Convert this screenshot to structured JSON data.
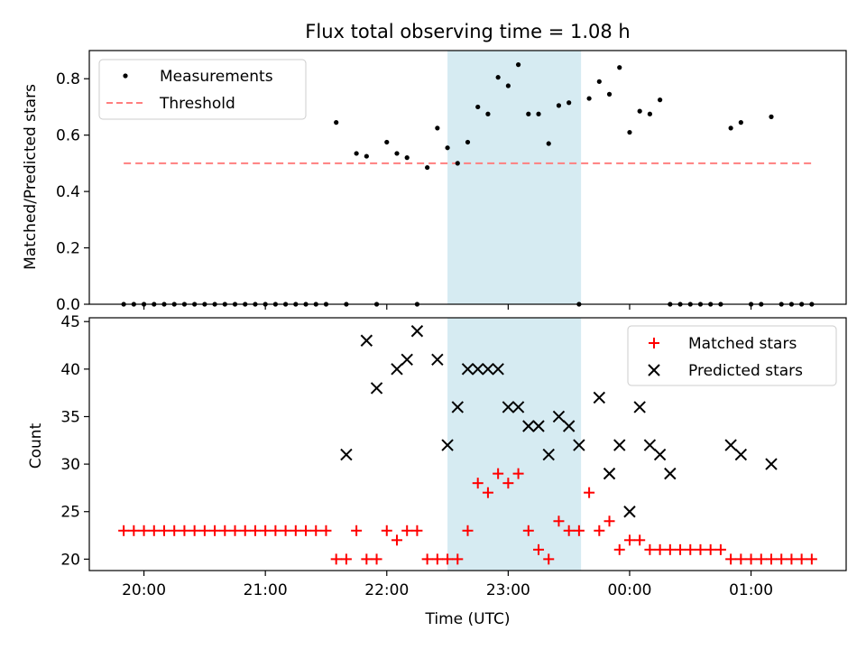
{
  "chart_data": [
    {
      "type": "scatter",
      "title": "Flux total observing time = 1.08 h",
      "ylabel": "Matched/Predicted stars",
      "xlabel": "",
      "ylim": [
        0,
        0.9
      ],
      "yticks": [
        "0.0",
        "0.2",
        "0.4",
        "0.6",
        "0.8"
      ],
      "xlim": [
        "19:33",
        "01:47"
      ],
      "legend": {
        "placement": "top-left",
        "entries": [
          "Measurements",
          "Threshold"
        ]
      },
      "shaded_interval": {
        "x0": "22:30",
        "x1": "23:36",
        "color": "#add8e6"
      },
      "series": [
        {
          "name": "Measurements",
          "marker": "dot",
          "color": "#000000",
          "x": [
            "19:50",
            "19:55",
            "20:00",
            "20:05",
            "20:10",
            "20:15",
            "20:20",
            "20:25",
            "20:30",
            "20:35",
            "20:40",
            "20:45",
            "20:50",
            "20:55",
            "21:00",
            "21:05",
            "21:10",
            "21:15",
            "21:20",
            "21:25",
            "21:30",
            "21:35",
            "21:40",
            "21:45",
            "21:50",
            "21:55",
            "22:00",
            "22:05",
            "22:10",
            "22:15",
            "22:20",
            "22:25",
            "22:30",
            "22:35",
            "22:40",
            "22:45",
            "22:50",
            "22:55",
            "23:00",
            "23:05",
            "23:10",
            "23:15",
            "23:20",
            "23:25",
            "23:30",
            "23:35",
            "23:40",
            "23:45",
            "23:50",
            "23:55",
            "00:00",
            "00:05",
            "00:10",
            "00:15",
            "00:20",
            "00:25",
            "00:30",
            "00:35",
            "00:40",
            "00:45",
            "00:50",
            "00:55",
            "01:00",
            "01:05",
            "01:10",
            "01:15",
            "01:20",
            "01:25",
            "01:30"
          ],
          "y": [
            0,
            0,
            0,
            0,
            0,
            0,
            0,
            0,
            0,
            0,
            0,
            0,
            0,
            0,
            0,
            0,
            0,
            0,
            0,
            0,
            0,
            0.645,
            0,
            0.535,
            0.525,
            0,
            0.575,
            0.535,
            0.52,
            0,
            0.485,
            0.625,
            0.555,
            0.5,
            0.575,
            0.7,
            0.675,
            0.805,
            0.775,
            0.85,
            0.675,
            0.675,
            0.57,
            0.705,
            0.715,
            0,
            0.73,
            0.79,
            0.745,
            0.84,
            0.61,
            0.685,
            0.675,
            0.725,
            0,
            0,
            0,
            0,
            0,
            0,
            0.625,
            0.645,
            0,
            0,
            0.665,
            0,
            0,
            0,
            0
          ]
        },
        {
          "name": "Threshold",
          "marker": "dashed-line",
          "color": "#ff7f7f",
          "x": [
            "19:50",
            "01:30"
          ],
          "y": [
            0.5,
            0.5
          ]
        }
      ]
    },
    {
      "type": "scatter",
      "title": "",
      "ylabel": "Count",
      "xlabel": "Time (UTC)",
      "ylim": [
        18.8,
        45.4
      ],
      "yticks": [
        "20",
        "25",
        "30",
        "35",
        "40",
        "45"
      ],
      "xticks": [
        "20:00",
        "21:00",
        "22:00",
        "23:00",
        "00:00",
        "01:00"
      ],
      "xlim": [
        "19:33",
        "01:47"
      ],
      "legend": {
        "placement": "top-right",
        "entries": [
          "Matched stars",
          "Predicted stars"
        ]
      },
      "shaded_interval": {
        "x0": "22:30",
        "x1": "23:36",
        "color": "#add8e6"
      },
      "series": [
        {
          "name": "Matched stars",
          "marker": "plus",
          "color": "#ff0000",
          "x": [
            "19:50",
            "19:55",
            "20:00",
            "20:05",
            "20:10",
            "20:15",
            "20:20",
            "20:25",
            "20:30",
            "20:35",
            "20:40",
            "20:45",
            "20:50",
            "20:55",
            "21:00",
            "21:05",
            "21:10",
            "21:15",
            "21:20",
            "21:25",
            "21:30",
            "21:35",
            "21:40",
            "21:45",
            "21:50",
            "21:55",
            "22:00",
            "22:05",
            "22:10",
            "22:15",
            "22:20",
            "22:25",
            "22:30",
            "22:35",
            "22:40",
            "22:45",
            "22:50",
            "22:55",
            "23:00",
            "23:05",
            "23:10",
            "23:15",
            "23:20",
            "23:25",
            "23:30",
            "23:35",
            "23:40",
            "23:45",
            "23:50",
            "23:55",
            "00:00",
            "00:05",
            "00:10",
            "00:15",
            "00:20",
            "00:25",
            "00:30",
            "00:35",
            "00:40",
            "00:45",
            "00:50",
            "00:55",
            "01:00",
            "01:05",
            "01:10",
            "01:15",
            "01:20",
            "01:25",
            "01:30"
          ],
          "y": [
            23,
            23,
            23,
            23,
            23,
            23,
            23,
            23,
            23,
            23,
            23,
            23,
            23,
            23,
            23,
            23,
            23,
            23,
            23,
            23,
            23,
            20,
            20,
            23,
            20,
            20,
            23,
            22,
            23,
            23,
            20,
            20,
            20,
            20,
            23,
            28,
            27,
            29,
            28,
            29,
            23,
            21,
            20,
            24,
            23,
            23,
            27,
            23,
            24,
            21,
            22,
            22,
            21,
            21,
            21,
            21,
            21,
            21,
            21,
            21,
            20,
            20,
            20,
            20,
            20,
            20,
            20,
            20,
            20
          ]
        },
        {
          "name": "Predicted stars",
          "marker": "x",
          "color": "#000000",
          "x": [
            "21:40",
            "21:50",
            "21:55",
            "22:05",
            "22:10",
            "22:15",
            "22:25",
            "22:30",
            "22:35",
            "22:40",
            "22:45",
            "22:50",
            "22:55",
            "23:00",
            "23:05",
            "23:10",
            "23:15",
            "23:20",
            "23:25",
            "23:30",
            "23:35",
            "23:45",
            "23:50",
            "23:55",
            "00:00",
            "00:05",
            "00:10",
            "00:15",
            "00:20",
            "00:50",
            "00:55",
            "01:10"
          ],
          "y": [
            31,
            43,
            38,
            40,
            41,
            44,
            41,
            32,
            36,
            40,
            40,
            40,
            40,
            36,
            36,
            34,
            34,
            31,
            35,
            34,
            32,
            37,
            29,
            32,
            25,
            36,
            32,
            31,
            29,
            32,
            31,
            30
          ]
        }
      ]
    }
  ]
}
